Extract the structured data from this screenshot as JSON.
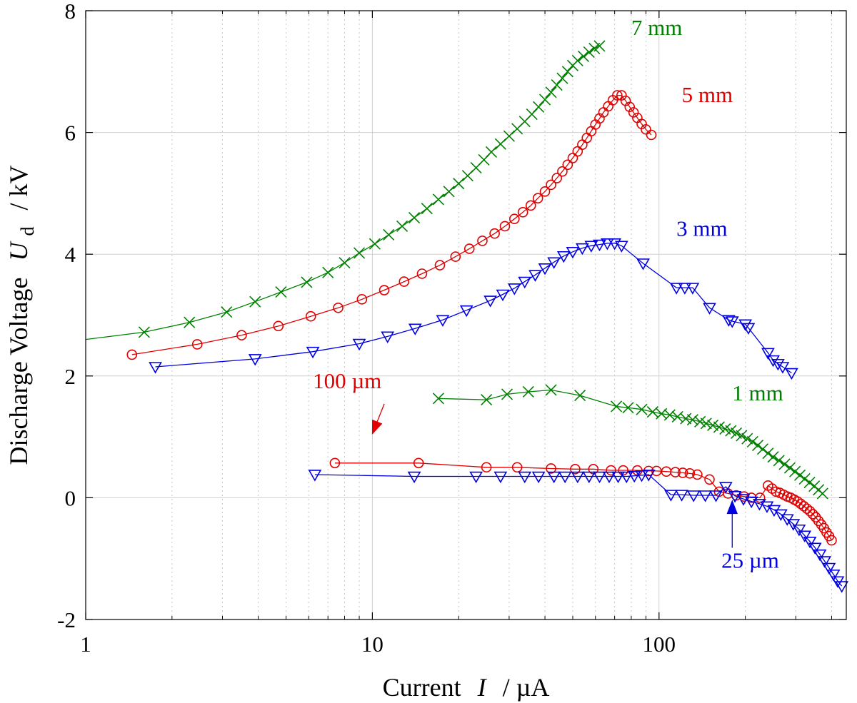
{
  "chart_data": {
    "type": "scatter",
    "x_scale": "log",
    "xlim": [
      1,
      450
    ],
    "ylim": [
      -2,
      8
    ],
    "xlabel": {
      "main": "Current",
      "symbol": "I",
      "unit": "/ µA"
    },
    "ylabel": {
      "main": "Discharge Voltage",
      "symbol": "U",
      "subscript": "d",
      "unit": "/ kV"
    },
    "x_ticks": [
      {
        "value": 1,
        "label": "1"
      },
      {
        "value": 10,
        "label": "10"
      },
      {
        "value": 100,
        "label": "100"
      }
    ],
    "y_ticks": [
      {
        "value": -2,
        "label": "-2"
      },
      {
        "value": 0,
        "label": "0"
      },
      {
        "value": 2,
        "label": "2"
      },
      {
        "value": 4,
        "label": "4"
      },
      {
        "value": 6,
        "label": "6"
      },
      {
        "value": 8,
        "label": "8"
      }
    ],
    "grid": true,
    "series": [
      {
        "name": "7 mm",
        "color": "#008000",
        "marker": "x",
        "x": [
          1.6,
          2.3,
          3.1,
          3.9,
          4.8,
          5.9,
          7.0,
          8.0,
          9.0,
          10.2,
          11.4,
          12.7,
          14.0,
          15.5,
          17.0,
          18.5,
          20.0,
          21.5,
          23.0,
          24.5,
          26.0,
          28.0,
          30.0,
          32.0,
          34.0,
          36.0,
          38.0,
          40.0,
          42.0,
          44.0,
          46.0,
          48.0,
          50.0,
          52.0,
          54.5,
          57.0,
          59.5,
          62.0
        ],
        "y": [
          2.72,
          2.88,
          3.05,
          3.22,
          3.38,
          3.54,
          3.7,
          3.86,
          4.02,
          4.17,
          4.32,
          4.46,
          4.6,
          4.75,
          4.9,
          5.03,
          5.16,
          5.29,
          5.42,
          5.55,
          5.68,
          5.81,
          5.94,
          6.06,
          6.18,
          6.3,
          6.42,
          6.54,
          6.66,
          6.78,
          6.89,
          7.0,
          7.1,
          7.18,
          7.25,
          7.32,
          7.38,
          7.42
        ]
      },
      {
        "name": "5 mm",
        "color": "#e00000",
        "marker": "o",
        "x": [
          1.45,
          2.45,
          3.5,
          4.7,
          6.1,
          7.6,
          9.2,
          11.0,
          12.9,
          14.9,
          17.2,
          19.5,
          21.8,
          24.2,
          26.7,
          29.0,
          31.3,
          33.5,
          35.7,
          37.8,
          40.0,
          42.0,
          44.0,
          46.0,
          48.0,
          50.0,
          52.0,
          54.0,
          56.0,
          58.0,
          60.0,
          62.0,
          64.0,
          66.5,
          69.0,
          71.5,
          74.0,
          76.5,
          79.0,
          81.5,
          84.0,
          87.0,
          90.0,
          94.0
        ],
        "y": [
          2.35,
          2.52,
          2.67,
          2.82,
          2.98,
          3.12,
          3.26,
          3.41,
          3.55,
          3.68,
          3.82,
          3.96,
          4.09,
          4.22,
          4.34,
          4.46,
          4.58,
          4.69,
          4.8,
          4.92,
          5.03,
          5.14,
          5.25,
          5.36,
          5.47,
          5.58,
          5.69,
          5.8,
          5.91,
          6.02,
          6.13,
          6.23,
          6.33,
          6.43,
          6.53,
          6.61,
          6.61,
          6.52,
          6.42,
          6.33,
          6.24,
          6.14,
          6.05,
          5.96
        ],
        "_x_mono": true
      },
      {
        "name": "3 mm",
        "color": "#0000e0",
        "marker": "v",
        "x": [
          1.75,
          3.9,
          6.2,
          9.0,
          11.3,
          14.1,
          17.6,
          21.3,
          25.8,
          28.5,
          31.3,
          34.0,
          37.0,
          40.0,
          43.0,
          46.5,
          50.0,
          54.0,
          58.0,
          62.0,
          66.0,
          70.0,
          74.0,
          88.0,
          115.0,
          123.0,
          131.0,
          150.0,
          175.0,
          180.0,
          200.0,
          205.0,
          240.0,
          250.0,
          260.0,
          270.0,
          290.0
        ],
        "y": [
          2.15,
          2.28,
          2.4,
          2.53,
          2.65,
          2.78,
          2.92,
          3.08,
          3.24,
          3.34,
          3.44,
          3.55,
          3.66,
          3.77,
          3.87,
          3.97,
          4.04,
          4.1,
          4.14,
          4.16,
          4.18,
          4.18,
          4.14,
          3.85,
          3.45,
          3.45,
          3.45,
          3.12,
          2.92,
          2.9,
          2.85,
          2.79,
          2.38,
          2.26,
          2.2,
          2.15,
          2.05
        ]
      },
      {
        "name": "1 mm",
        "color": "#008000",
        "marker": "x",
        "x": [
          17.0,
          25.0,
          29.5,
          35.0,
          42.0,
          53.0,
          71.0,
          78.0,
          87.0,
          95.0,
          102.0,
          109.0,
          116.0,
          124.0,
          131.0,
          139.0,
          146.0,
          154.0,
          162.0,
          170.0,
          178.0,
          186.0,
          194.0,
          203.0,
          212.0,
          221.0,
          230.0,
          240.0,
          250.0,
          262.0,
          274.0,
          286.0,
          298.0,
          310.0,
          322.0,
          335.0,
          348.0,
          360.0,
          372.0
        ],
        "y": [
          1.63,
          1.61,
          1.7,
          1.74,
          1.77,
          1.68,
          1.5,
          1.48,
          1.45,
          1.41,
          1.38,
          1.36,
          1.33,
          1.3,
          1.28,
          1.25,
          1.22,
          1.19,
          1.16,
          1.13,
          1.1,
          1.06,
          1.02,
          0.97,
          0.92,
          0.86,
          0.8,
          0.73,
          0.67,
          0.61,
          0.55,
          0.49,
          0.43,
          0.37,
          0.31,
          0.25,
          0.19,
          0.13,
          0.07
        ]
      },
      {
        "name": "100 µm",
        "color": "#e00000",
        "marker": "o",
        "x": [
          7.4,
          14.5,
          25.0,
          32.0,
          42.0,
          51.0,
          59.0,
          68.0,
          75.0,
          84.0,
          92.0,
          98.0,
          106.0,
          114.0,
          121.0,
          128.0,
          136.0,
          150.0,
          162.0,
          174.0,
          186.0,
          198.0,
          210.0,
          225.0,
          240.0,
          248.0,
          256.0,
          264.0,
          272.0,
          280.0,
          288.0,
          296.0,
          304.0,
          312.0,
          320.0,
          328.0,
          336.0,
          344.0,
          352.0,
          360.0,
          368.0,
          376.0,
          384.0,
          392.0,
          400.0
        ],
        "y": [
          0.57,
          0.57,
          0.5,
          0.5,
          0.48,
          0.47,
          0.47,
          0.45,
          0.45,
          0.45,
          0.44,
          0.44,
          0.43,
          0.42,
          0.41,
          0.4,
          0.38,
          0.3,
          0.1,
          0.07,
          0.04,
          0.02,
          0.0,
          0.0,
          0.2,
          0.15,
          0.1,
          0.08,
          0.05,
          0.02,
          0.0,
          -0.03,
          -0.06,
          -0.1,
          -0.14,
          -0.18,
          -0.22,
          -0.27,
          -0.32,
          -0.38,
          -0.44,
          -0.5,
          -0.57,
          -0.63,
          -0.7
        ]
      },
      {
        "name": "25 µm",
        "color": "#0000e0",
        "marker": "v",
        "x": [
          6.3,
          14.0,
          23.0,
          28.0,
          34.0,
          38.0,
          43.0,
          47.0,
          52.0,
          57.0,
          62.0,
          67.0,
          72.0,
          77.0,
          82.0,
          87.0,
          92.0,
          110.0,
          120.0,
          132.0,
          145.0,
          158.0,
          171.0,
          184.0,
          197.0,
          210.0,
          224.0,
          238.0,
          252.0,
          266.0,
          280.0,
          294.0,
          308.0,
          322.0,
          336.0,
          350.0,
          364.0,
          378.0,
          392.0,
          406.0,
          420.0,
          434.0
        ],
        "y": [
          0.38,
          0.35,
          0.35,
          0.35,
          0.35,
          0.35,
          0.35,
          0.35,
          0.35,
          0.35,
          0.35,
          0.35,
          0.35,
          0.35,
          0.36,
          0.37,
          0.38,
          0.05,
          0.05,
          0.04,
          0.04,
          0.04,
          0.18,
          0.03,
          -0.02,
          -0.06,
          -0.1,
          -0.14,
          -0.2,
          -0.27,
          -0.35,
          -0.43,
          -0.52,
          -0.62,
          -0.72,
          -0.82,
          -0.93,
          -1.04,
          -1.15,
          -1.26,
          -1.37,
          -1.45
        ]
      }
    ],
    "annotations": [
      {
        "text": "7 mm",
        "color": "#008000",
        "x": 80,
        "y": 7.6
      },
      {
        "text": "5 mm",
        "color": "#e00000",
        "x": 120,
        "y": 6.5
      },
      {
        "text": "3 mm",
        "color": "#0000e0",
        "x": 115,
        "y": 4.3
      },
      {
        "text": "1 mm",
        "color": "#008000",
        "x": 180,
        "y": 1.6
      },
      {
        "text": "100 µm",
        "color": "#e00000",
        "x": 6.2,
        "y": 1.8,
        "arrow_to": [
          10,
          1.05
        ]
      },
      {
        "text": "25 µm",
        "color": "#0000e0",
        "x": 165,
        "y": -1.15,
        "arrow_to": [
          180,
          -0.05
        ]
      }
    ]
  }
}
